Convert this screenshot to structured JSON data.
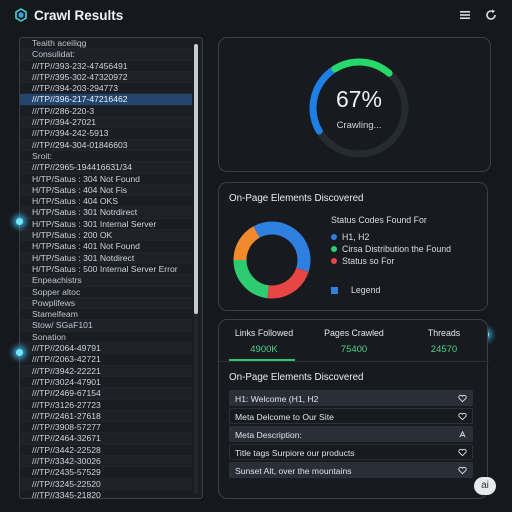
{
  "app": {
    "title": "Crawl Results"
  },
  "list": {
    "rows": [
      {
        "text": "Teaith aceiliqg",
        "kind": "label"
      },
      {
        "text": "Consulidat:",
        "kind": "label"
      },
      {
        "text": "///TP//393-232-47456491",
        "kind": "url"
      },
      {
        "text": "///TP//395-302-47320972",
        "kind": "url"
      },
      {
        "text": "///TP//394-203-294773",
        "kind": "url"
      },
      {
        "text": "///TP//396-217-47216462",
        "kind": "url",
        "selected": true
      },
      {
        "text": "///TP//286-220-3",
        "kind": "url"
      },
      {
        "text": "///TP//394-27021",
        "kind": "url"
      },
      {
        "text": "///TP//394-242-5913",
        "kind": "url"
      },
      {
        "text": "///TP//294-304-01846603",
        "kind": "url"
      },
      {
        "text": "Sroit:",
        "kind": "label"
      },
      {
        "text": "///TP//2965-194416631/34",
        "kind": "url"
      },
      {
        "text": "H/TP/Satus  :   304 Not Found",
        "kind": "status"
      },
      {
        "text": "H/TP/Satus  :   404 Not Fis",
        "kind": "status"
      },
      {
        "text": "H/TP/Satus  :   404 OKS",
        "kind": "status"
      },
      {
        "text": "H/TP/Satus  :   301 Notrdirect",
        "kind": "status"
      },
      {
        "text": "H/TP/Satus  :   301 Internal Server",
        "kind": "status"
      },
      {
        "text": "H/TP/Satus  :   200 OK",
        "kind": "status"
      },
      {
        "text": "H/TP/Satus  :  401 Not Found",
        "kind": "status"
      },
      {
        "text": "H/TP/Satus  :  301 Notdirect",
        "kind": "status"
      },
      {
        "text": "H/TP/Satus  :  500 Internal Server Error",
        "kind": "status"
      },
      {
        "text": "Enpeachistrs",
        "kind": "label"
      },
      {
        "text": "Sopper altoc",
        "kind": "label"
      },
      {
        "text": "Powplifews",
        "kind": "label"
      },
      {
        "text": "Stamelfeam",
        "kind": "label"
      },
      {
        "text": "Stow/ SGaF101",
        "kind": "label"
      },
      {
        "text": "Sonation",
        "kind": "label"
      },
      {
        "text": "///TP//2064-49791",
        "kind": "url"
      },
      {
        "text": "///TP//2063-42721",
        "kind": "url"
      },
      {
        "text": "///TP//3942-22221",
        "kind": "url"
      },
      {
        "text": "///TP//3024-47901",
        "kind": "url"
      },
      {
        "text": "///TP//2469-67154",
        "kind": "url"
      },
      {
        "text": "///TP//3126-27723",
        "kind": "url"
      },
      {
        "text": "///TP//2461-27618",
        "kind": "url"
      },
      {
        "text": "///TP//3908-57277",
        "kind": "url"
      },
      {
        "text": "///TP//2464-32671",
        "kind": "url"
      },
      {
        "text": "///TP//3442-22528",
        "kind": "url"
      },
      {
        "text": "///TP//3342-30026",
        "kind": "url"
      },
      {
        "text": "///TP//2435-57529",
        "kind": "url"
      },
      {
        "text": "///TP//3245-22520",
        "kind": "url"
      },
      {
        "text": "///TP//3345-21820",
        "kind": "url"
      }
    ]
  },
  "gauge": {
    "value_label": "67%",
    "percent": 67,
    "status": "Crawling...",
    "colors": [
      "#1e7fe6",
      "#25d86a"
    ]
  },
  "status_panel": {
    "title": "On-Page Elements Discovered",
    "legend_title": "Status Codes Found For",
    "legend": [
      {
        "label": "H1, H2",
        "color": "#2e7fe0"
      },
      {
        "label": "Cirsa Distribution the Found",
        "color": "#2ecc71"
      },
      {
        "label": "Status so For",
        "color": "#e84545"
      }
    ],
    "legend_footer": "Legend",
    "slices": [
      {
        "color": "#2e7fe0",
        "value": 30
      },
      {
        "color": "#e84545",
        "value": 22
      },
      {
        "color": "#2ecc71",
        "value": 23
      },
      {
        "color": "#f08a2c",
        "value": 17
      },
      {
        "color": "#2e7fe0",
        "value": 8
      }
    ]
  },
  "stats": {
    "items": [
      {
        "label": "Links Followed",
        "value": "4900K"
      },
      {
        "label": "Pages Crawled",
        "value": "75400"
      },
      {
        "label": "Threads",
        "value": "24570"
      }
    ],
    "elements_title": "On-Page Elements Discovered",
    "elements": [
      {
        "text": "H1: Welcome (H1, H2"
      },
      {
        "text": "Meta Delcome to Our Site"
      },
      {
        "text": "Meta Description:"
      },
      {
        "text": "Title tags Surpiore our products"
      },
      {
        "text": "Sunset Alt, over the mountains"
      }
    ]
  },
  "badge": "ai"
}
